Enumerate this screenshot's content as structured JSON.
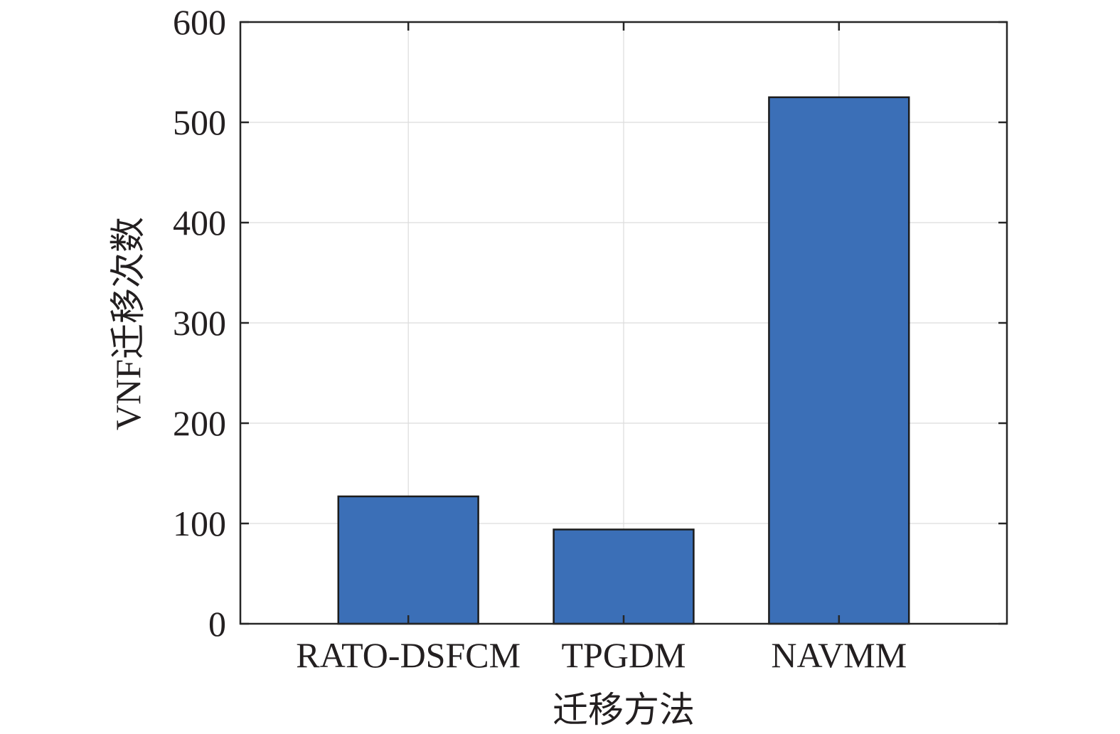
{
  "chart_data": {
    "type": "bar",
    "categories": [
      "RATO-DSFCM",
      "TPGDM",
      "NAVMM"
    ],
    "values": [
      127,
      94,
      525
    ],
    "xlabel": "迁移方法",
    "ylabel": "VNF迁移次数",
    "ylim": [
      0,
      600
    ],
    "yticks": [
      0,
      100,
      200,
      300,
      400,
      500,
      600
    ],
    "grid": true,
    "colors": {
      "bar_fill": "#3b6fb7",
      "bar_edge": "#1c1c1c",
      "axis": "#262626",
      "grid": "#dcdcdc"
    }
  }
}
